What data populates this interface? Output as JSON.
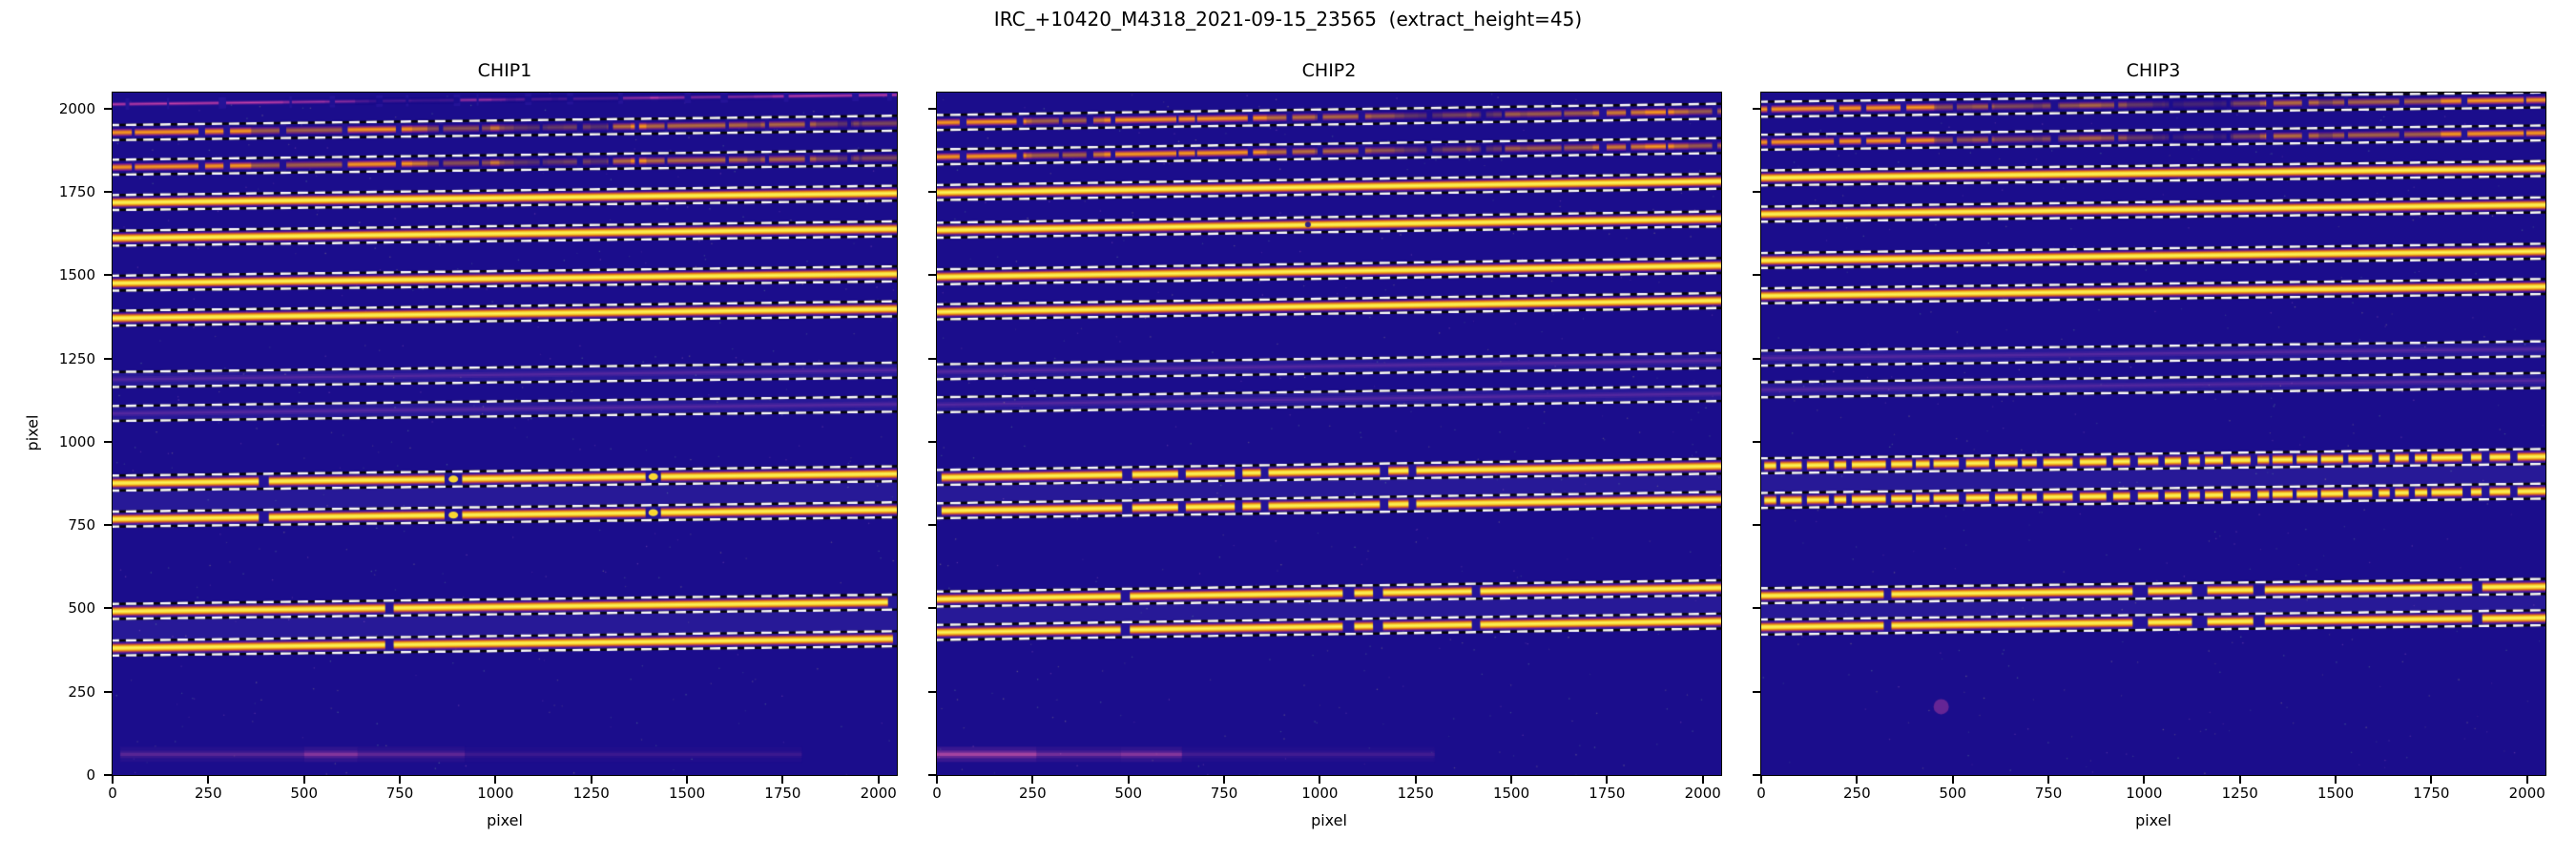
{
  "figure": {
    "title": "IRC_+10420_M4318_2021-09-15_23565  (extract_height=45)",
    "background": "#ffffff",
    "extract_height": 45
  },
  "axes": {
    "xlabel": "pixel",
    "ylabel": "pixel",
    "xlim": [
      0,
      2048
    ],
    "ylim": [
      0,
      2048
    ],
    "xticks": [
      "0",
      "250",
      "500",
      "750",
      "1000",
      "1250",
      "1500",
      "1750",
      "2000"
    ],
    "xtick_values": [
      0,
      250,
      500,
      750,
      1000,
      1250,
      1500,
      1750,
      2000
    ],
    "yticks": [
      "0",
      "250",
      "500",
      "750",
      "1000",
      "1250",
      "1500",
      "1750",
      "2000"
    ],
    "ytick_values": [
      0,
      250,
      500,
      750,
      1000,
      1250,
      1500,
      1750,
      2000
    ]
  },
  "colors": {
    "image_background": "#1b0d8c",
    "gap_fill": "#241397",
    "band_highlight": "rgba(125,105,230,0.13)",
    "trace_core_yellow": "#fdf360",
    "trace_yellow": "#f8d831",
    "trace_orange": "#ee7d0c",
    "trace_edge_magenta": "#8c169e",
    "magenta": "#c2429f",
    "smear_magenta": "#cf4fa2",
    "dash_white": "#fafafa",
    "dash_black": "#060606",
    "axis_color": "#000000"
  },
  "chart_data": {
    "type": "heatmap",
    "title": "IRC_+10420_M4318_2021-09-15_23565",
    "extract_height": 45,
    "xlabel": "pixel",
    "ylabel": "pixel",
    "xlim": [
      0,
      2048
    ],
    "ylim": [
      0,
      2048
    ],
    "dash_offset_from_trace": 22.5,
    "panels": [
      {
        "label": "CHIP1",
        "tilt": 28,
        "orders": [
          {
            "y": 2027,
            "color": "magenta",
            "style": "fragmented",
            "dashes": false,
            "seed": 11
          },
          {
            "y": 1942,
            "color": "orange",
            "style": "fragmented",
            "dashes": true,
            "seed": 12
          },
          {
            "y": 1838,
            "color": "orange",
            "style": "fragmented",
            "dashes": true,
            "seed": 12
          },
          {
            "y": 1732,
            "color": "yellow",
            "style": "solid",
            "dashes": true
          },
          {
            "y": 1625,
            "color": "yellow",
            "style": "solid",
            "dashes": true
          },
          {
            "y": 1490,
            "color": "yellow",
            "style": "solid",
            "dashes": true
          },
          {
            "y": 1385,
            "color": "yellow",
            "style": "solid",
            "dashes": true
          },
          {
            "y": 1201,
            "color": "none",
            "style": "faint",
            "dashes": true
          },
          {
            "y": 1099,
            "color": "none",
            "style": "faint",
            "dashes": true
          },
          {
            "y": 890,
            "color": "yellow",
            "style": "solid",
            "dashes": true,
            "gaps": [
              [
                395,
                26
              ],
              [
                890,
                46
              ],
              [
                1412,
                40
              ]
            ],
            "beads": [
              890,
              1412
            ]
          },
          {
            "y": 782,
            "color": "yellow",
            "style": "solid",
            "dashes": true,
            "gaps": [
              [
                395,
                26
              ],
              [
                890,
                46
              ],
              [
                1412,
                40
              ]
            ],
            "beads": [
              890,
              1412
            ]
          },
          {
            "y": 505,
            "color": "yellow",
            "style": "solid",
            "dashes": true,
            "gaps": [
              [
                723,
                22
              ]
            ],
            "x1": 2025
          },
          {
            "y": 395,
            "color": "yellow",
            "style": "solid",
            "dashes": true,
            "gaps": [
              [
                723,
                22
              ]
            ],
            "x1": 2038
          }
        ],
        "bands": [
          [
            1226,
            1176
          ],
          [
            1124,
            1074
          ],
          [
            912,
            760
          ],
          [
            528,
            372
          ]
        ],
        "features": [
          {
            "type": "smear",
            "y": 62,
            "segments": [
              [
                20,
                500,
                0.2
              ],
              [
                500,
                640,
                0.38
              ],
              [
                640,
                920,
                0.22
              ],
              [
                920,
                1800,
                0.1
              ]
            ]
          }
        ]
      },
      {
        "label": "CHIP2",
        "tilt": 34,
        "orders": [
          {
            "y": 1975,
            "color": "orange",
            "style": "fragmented",
            "dashes": true,
            "seed": 21
          },
          {
            "y": 1872,
            "color": "orange",
            "style": "fragmented",
            "dashes": true,
            "seed": 21
          },
          {
            "y": 1765,
            "color": "yellow",
            "style": "solid",
            "dashes": true
          },
          {
            "y": 1652,
            "color": "yellow",
            "style": "solid",
            "dashes": true
          },
          {
            "y": 1512,
            "color": "yellow",
            "style": "solid",
            "dashes": true
          },
          {
            "y": 1407,
            "color": "yellow",
            "style": "solid",
            "dashes": true
          },
          {
            "y": 1227,
            "color": "none",
            "style": "faint",
            "dashes": true
          },
          {
            "y": 1128,
            "color": "none",
            "style": "faint",
            "dashes": true
          },
          {
            "y": 910,
            "color": "yellow",
            "style": "solid",
            "dashes": true,
            "x0": 12,
            "gaps": [
              [
                497,
                26
              ],
              [
                640,
                18
              ],
              [
                788,
                20
              ],
              [
                856,
                18
              ],
              [
                1168,
                22
              ],
              [
                1242,
                20
              ]
            ]
          },
          {
            "y": 810,
            "color": "yellow",
            "style": "solid",
            "dashes": true,
            "x0": 12,
            "gaps": [
              [
                497,
                26
              ],
              [
                640,
                18
              ],
              [
                788,
                20
              ],
              [
                856,
                18
              ],
              [
                1168,
                22
              ],
              [
                1242,
                20
              ]
            ]
          },
          {
            "y": 545,
            "color": "yellow",
            "style": "solid",
            "dashes": true,
            "gaps": [
              [
                492,
                24
              ],
              [
                1075,
                30
              ],
              [
                1152,
                26
              ],
              [
                1408,
                22
              ]
            ]
          },
          {
            "y": 445,
            "color": "yellow",
            "style": "solid",
            "dashes": true,
            "gaps": [
              [
                492,
                24
              ],
              [
                1075,
                30
              ],
              [
                1152,
                26
              ],
              [
                1408,
                22
              ]
            ]
          }
        ],
        "bands": [
          [
            1252,
            1202
          ],
          [
            1153,
            1103
          ],
          [
            932,
            788
          ],
          [
            567,
            423
          ]
        ],
        "features": [
          {
            "type": "smear",
            "y": 62,
            "segments": [
              [
                0,
                260,
                0.55
              ],
              [
                260,
                480,
                0.3
              ],
              [
                480,
                640,
                0.38
              ],
              [
                640,
                1300,
                0.12
              ]
            ]
          },
          {
            "type": "dot",
            "x": 969,
            "y": 1652,
            "r": 3,
            "color": "#1b0d8c",
            "alpha": 0.9
          }
        ]
      },
      {
        "label": "CHIP3",
        "tilt": 28,
        "orders": [
          {
            "y": 2012,
            "color": "orange",
            "style": "fragmented",
            "dashes": true,
            "seed": 31
          },
          {
            "y": 1913,
            "color": "orange",
            "style": "fragmented",
            "dashes": true,
            "seed": 31
          },
          {
            "y": 1806,
            "color": "yellow",
            "style": "solid",
            "dashes": true
          },
          {
            "y": 1697,
            "color": "yellow",
            "style": "solid",
            "dashes": true
          },
          {
            "y": 1558,
            "color": "yellow",
            "style": "solid",
            "dashes": true
          },
          {
            "y": 1452,
            "color": "yellow",
            "style": "solid",
            "dashes": true
          },
          {
            "y": 1265,
            "color": "none",
            "style": "faint",
            "dashes": true
          },
          {
            "y": 1170,
            "color": "none",
            "style": "faint",
            "dashes": true
          },
          {
            "y": 942,
            "color": "yellow",
            "style": "beaded",
            "dashes": true,
            "seed": 32,
            "x0": 8
          },
          {
            "y": 838,
            "color": "yellow",
            "style": "beaded",
            "dashes": true,
            "seed": 32,
            "x0": 8
          },
          {
            "y": 552,
            "color": "yellow",
            "style": "solid",
            "dashes": true,
            "gaps": [
              [
                330,
                14
              ],
              [
                990,
                40
              ],
              [
                1145,
                40
              ],
              [
                1300,
                30
              ],
              [
                1870,
                26
              ]
            ]
          },
          {
            "y": 458,
            "color": "yellow",
            "style": "solid",
            "dashes": true,
            "gaps": [
              [
                330,
                14
              ],
              [
                990,
                40
              ],
              [
                1145,
                40
              ],
              [
                1300,
                30
              ],
              [
                1870,
                26
              ]
            ]
          }
        ],
        "bands": [
          [
            1290,
            1240
          ],
          [
            1195,
            1145
          ],
          [
            964,
            816
          ],
          [
            574,
            436
          ]
        ],
        "features": [
          {
            "type": "dot",
            "x": 470,
            "y": 205,
            "r": 8,
            "color": "#c2429f",
            "alpha": 0.45
          }
        ]
      }
    ]
  }
}
